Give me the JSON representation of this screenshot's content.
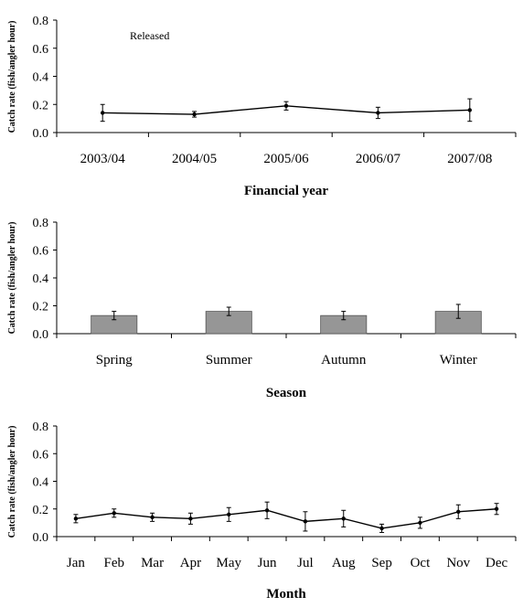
{
  "chart_data": [
    {
      "type": "line",
      "annotation": "Released",
      "ylabel": "Catch rate (fish/angler hour)",
      "xlabel": "Financial year",
      "ylim": [
        0,
        0.8
      ],
      "yticks": [
        "0.0",
        "0.2",
        "0.4",
        "0.6",
        "0.8"
      ],
      "categories": [
        "2003/04",
        "2004/05",
        "2005/06",
        "2006/07",
        "2007/08"
      ],
      "values": [
        0.14,
        0.13,
        0.19,
        0.14,
        0.16
      ],
      "errors": [
        0.06,
        0.02,
        0.03,
        0.04,
        0.08
      ],
      "line_color": "#000000"
    },
    {
      "type": "bar",
      "ylabel": "Catch rate (fish/angler hour)",
      "xlabel": "Season",
      "ylim": [
        0,
        0.8
      ],
      "yticks": [
        "0.0",
        "0.2",
        "0.4",
        "0.6",
        "0.8"
      ],
      "categories": [
        "Spring",
        "Summer",
        "Autumn",
        "Winter"
      ],
      "values": [
        0.13,
        0.16,
        0.13,
        0.16
      ],
      "errors": [
        0.03,
        0.03,
        0.03,
        0.05
      ],
      "bar_color": "#969696"
    },
    {
      "type": "line",
      "ylabel": "Catch rate (fish/angler hour)",
      "xlabel": "Month",
      "ylim": [
        0,
        0.8
      ],
      "yticks": [
        "0.0",
        "0.2",
        "0.4",
        "0.6",
        "0.8"
      ],
      "categories": [
        "Jan",
        "Feb",
        "Mar",
        "Apr",
        "May",
        "Jun",
        "Jul",
        "Aug",
        "Sep",
        "Oct",
        "Nov",
        "Dec"
      ],
      "values": [
        0.13,
        0.17,
        0.14,
        0.13,
        0.16,
        0.19,
        0.11,
        0.13,
        0.06,
        0.1,
        0.18,
        0.2
      ],
      "errors": [
        0.03,
        0.03,
        0.03,
        0.04,
        0.05,
        0.06,
        0.07,
        0.06,
        0.03,
        0.04,
        0.05,
        0.04
      ],
      "line_color": "#000000"
    }
  ]
}
